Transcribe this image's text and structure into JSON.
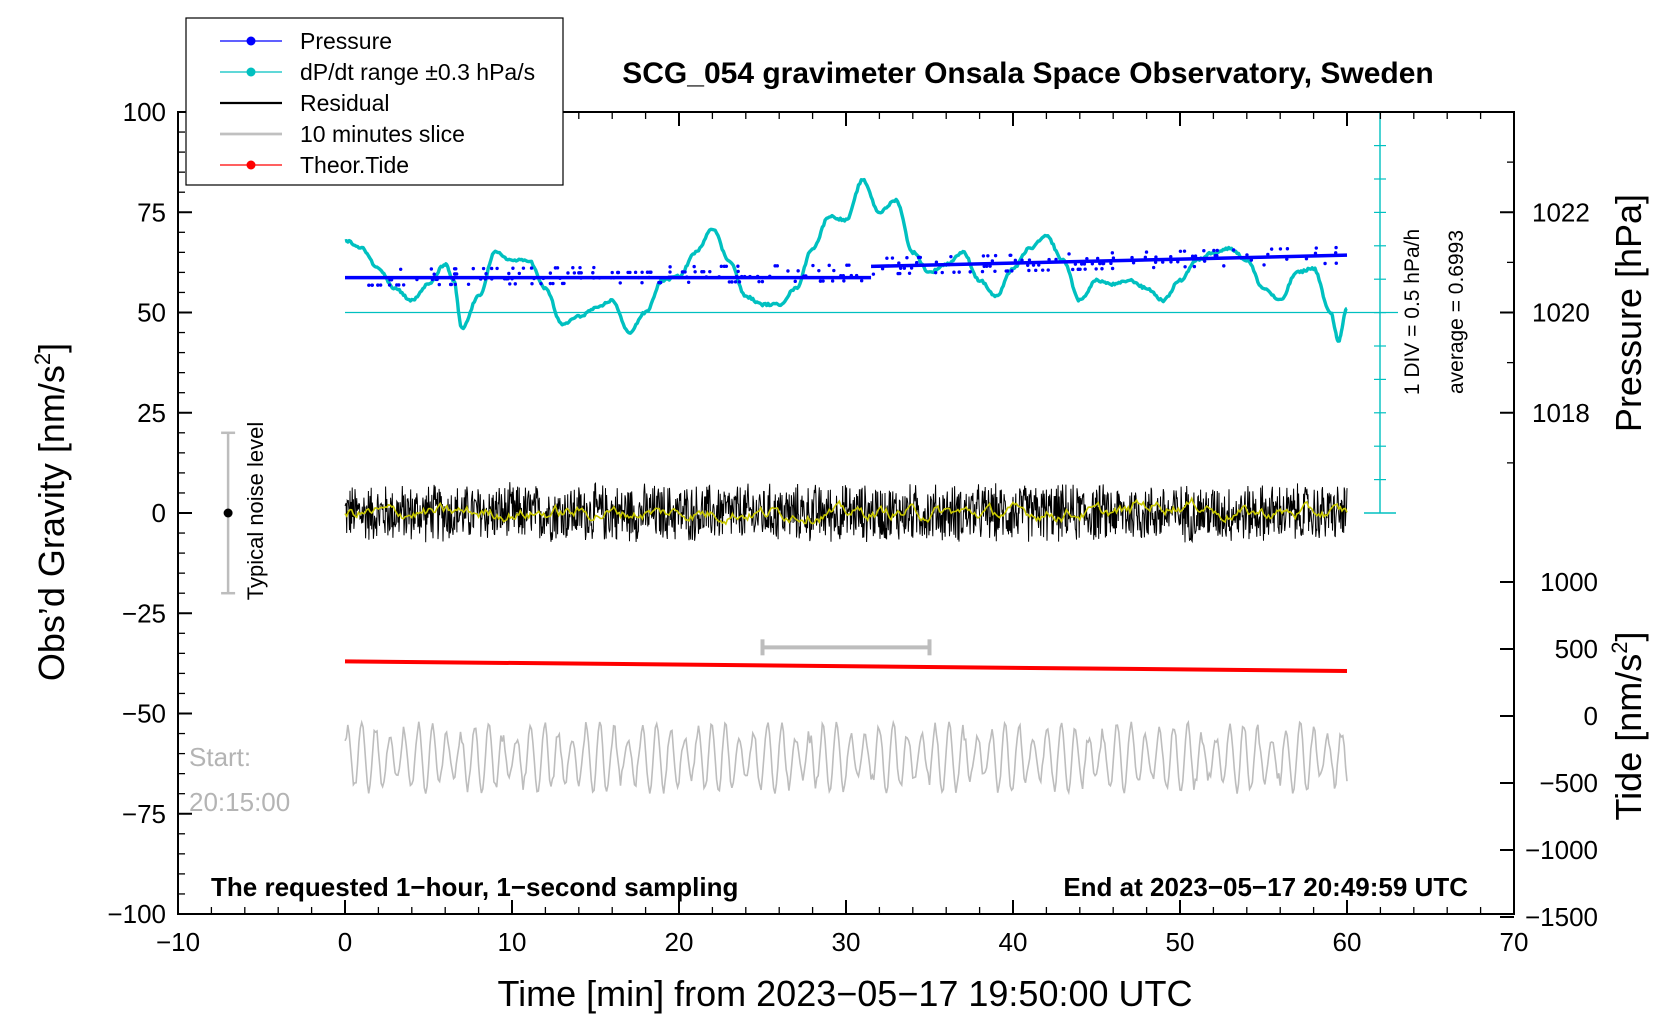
{
  "chart_data": {
    "type": "line",
    "title": "SCG_054 gravimeter Onsala Space Observatory, Sweden",
    "xlabel": "Time [min] from 2023−05−17 19:50:00 UTC",
    "ylabel_left": "Obs’d Gravity [nm/s",
    "ylabel_left_sup": "2",
    "ylabel_left_end": "]",
    "ylabel_right_pressure": "Pressure [hPa]",
    "ylabel_right_tide": "Tide [nm/s",
    "ylabel_right_tide_sup": "2",
    "ylabel_right_tide_end": "]",
    "xlim": [
      -10,
      70
    ],
    "ylim": [
      -100,
      100
    ],
    "x_ticks": [
      "−10",
      "0",
      "10",
      "20",
      "30",
      "40",
      "50",
      "60",
      "70"
    ],
    "y_ticks": [
      "−100",
      "−75",
      "−50",
      "−25",
      "0",
      "25",
      "50",
      "75",
      "100"
    ],
    "pressure_axis": {
      "ticks": [
        "1018",
        "1020",
        "1022"
      ],
      "tick_values": [
        1018,
        1020,
        1022
      ],
      "ref_value": 1020
    },
    "tide_axis": {
      "ticks": [
        "−1500",
        "−1000",
        "−500",
        "0",
        "500",
        "1000"
      ],
      "tick_values": [
        -1500,
        -1000,
        -500,
        0,
        500,
        1000
      ]
    },
    "legend": {
      "placement": "top-left",
      "entries": [
        {
          "label": "Pressure",
          "color": "#0000ff",
          "marker": "dot"
        },
        {
          "label": "dP/dt range ±0.3 hPa/s",
          "color": "#00c0c0",
          "marker": "dot"
        },
        {
          "label": "Residual",
          "color": "#000000",
          "marker": "none"
        },
        {
          "label": "10 minutes slice",
          "color": "#c0c0c0",
          "marker": "none"
        },
        {
          "label": "Theor.Tide",
          "color": "#ff0000",
          "marker": "dot"
        }
      ]
    },
    "annotations": {
      "noise_label": "Typical noise level",
      "noise_range": [
        -20,
        20
      ],
      "noise_x": -7,
      "div_label": "1 DIV = 0.5 hPa/h",
      "average_label": "average = 0.6993",
      "start_label": "Start:",
      "start_time": "20:15:00",
      "bottom_left": "The requested 1−hour, 1−second sampling",
      "bottom_right": "End at 2023−05−17 20:49:59 UTC",
      "slice_range": [
        25,
        35
      ],
      "slice_y": -33.5
    },
    "series": [
      {
        "name": "Pressure",
        "color": "#0000ff",
        "x": [
          0,
          31.5
        ],
        "y": [
          58.7,
          58.7
        ],
        "segment2_x": [
          31.5,
          60
        ],
        "segment2_y": [
          61.5,
          64.3
        ]
      },
      {
        "name": "dP/dt",
        "color": "#00c0c0",
        "x": [
          0,
          1,
          2,
          3,
          4,
          5,
          6,
          6.5,
          7,
          8,
          9,
          10,
          11,
          12,
          13,
          14,
          15,
          16,
          17,
          18,
          19,
          20,
          21,
          22,
          23,
          24,
          25,
          26,
          27,
          28,
          29,
          30,
          31,
          32,
          33,
          34,
          35,
          36,
          37,
          38,
          39,
          40,
          41,
          42,
          43,
          44,
          45,
          46,
          47,
          48,
          49,
          50,
          51,
          52,
          53,
          54,
          55,
          56,
          57,
          58,
          59,
          59.5,
          60
        ],
        "y": [
          68,
          66,
          61,
          56,
          53,
          57,
          62,
          58,
          46,
          54,
          65,
          63,
          63,
          56,
          47,
          49,
          51,
          53,
          45,
          50,
          58,
          59,
          65,
          71,
          63,
          54,
          52,
          52,
          56,
          66,
          74,
          73,
          83,
          75,
          78,
          65,
          60,
          62,
          65,
          58,
          54,
          61,
          66,
          69,
          63,
          53,
          58,
          57,
          58,
          56,
          53,
          58,
          63,
          65,
          66,
          63,
          56,
          53,
          60,
          61,
          50,
          43,
          51
        ]
      },
      {
        "name": "Residual",
        "color": "#000000",
        "x_range": [
          0,
          60
        ],
        "amplitude": 8
      },
      {
        "name": "10 minutes slice",
        "color": "#c0c0c0",
        "x_range": [
          0,
          60
        ],
        "y_center": -61,
        "amplitude": 9
      },
      {
        "name": "Theor.Tide",
        "color": "#ff0000",
        "x": [
          0,
          60
        ],
        "y": [
          -37,
          -39.4
        ]
      }
    ]
  }
}
